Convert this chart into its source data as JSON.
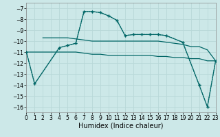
{
  "background_color": "#cce8e8",
  "grid_color": "#b8d8d8",
  "line_color": "#006666",
  "xlabel": "Humidex (Indice chaleur)",
  "xlim": [
    0,
    23
  ],
  "ylim": [
    -16.5,
    -6.5
  ],
  "xticks": [
    0,
    1,
    2,
    3,
    4,
    5,
    6,
    7,
    8,
    9,
    10,
    11,
    12,
    13,
    14,
    15,
    16,
    17,
    18,
    19,
    20,
    21,
    22,
    23
  ],
  "yticks": [
    -7,
    -8,
    -9,
    -10,
    -11,
    -12,
    -13,
    -14,
    -15,
    -16
  ],
  "line1_x": [
    0,
    1,
    4,
    5,
    6,
    7,
    8,
    9,
    10,
    11,
    12,
    13,
    14,
    15,
    16,
    17,
    19,
    21,
    22,
    23
  ],
  "line1_y": [
    -11.0,
    -13.9,
    -10.6,
    -10.4,
    -10.2,
    -7.3,
    -7.3,
    -7.4,
    -7.7,
    -8.1,
    -9.5,
    -9.4,
    -9.4,
    -9.4,
    -9.4,
    -9.5,
    -10.1,
    -14.0,
    -16.0,
    -11.8
  ],
  "line2_x": [
    0,
    1,
    4,
    5,
    6,
    7,
    8,
    9,
    10,
    11,
    12,
    13,
    14,
    15,
    16,
    17,
    19,
    21,
    22,
    23
  ],
  "line2_y": [
    -11.0,
    -13.9,
    -10.6,
    -10.4,
    -10.2,
    -7.3,
    -7.3,
    -7.4,
    -7.7,
    -8.1,
    -9.5,
    -9.4,
    -9.4,
    -9.4,
    -9.4,
    -9.5,
    -10.1,
    -14.0,
    -16.0,
    -11.8
  ],
  "line3_x": [
    2,
    3,
    4,
    5,
    6,
    7,
    8,
    9,
    10,
    11,
    12,
    13,
    14,
    15,
    16,
    17,
    18,
    19,
    20,
    21,
    22,
    23
  ],
  "line3_y": [
    -9.7,
    -9.7,
    -9.7,
    -9.7,
    -9.8,
    -9.9,
    -10.0,
    -10.0,
    -10.0,
    -10.0,
    -10.0,
    -10.0,
    -10.0,
    -10.0,
    -10.0,
    -10.1,
    -10.2,
    -10.3,
    -10.5,
    -10.5,
    -10.8,
    -11.8
  ],
  "line4_x": [
    0,
    1,
    2,
    3,
    4,
    5,
    6,
    7,
    8,
    9,
    10,
    11,
    12,
    13,
    14,
    15,
    16,
    17,
    18,
    19,
    20,
    21,
    22,
    23
  ],
  "line4_y": [
    -11.0,
    -11.0,
    -11.0,
    -11.0,
    -11.0,
    -11.0,
    -11.0,
    -11.1,
    -11.2,
    -11.2,
    -11.3,
    -11.3,
    -11.3,
    -11.3,
    -11.3,
    -11.3,
    -11.4,
    -11.4,
    -11.5,
    -11.5,
    -11.6,
    -11.6,
    -11.8,
    -11.8
  ]
}
